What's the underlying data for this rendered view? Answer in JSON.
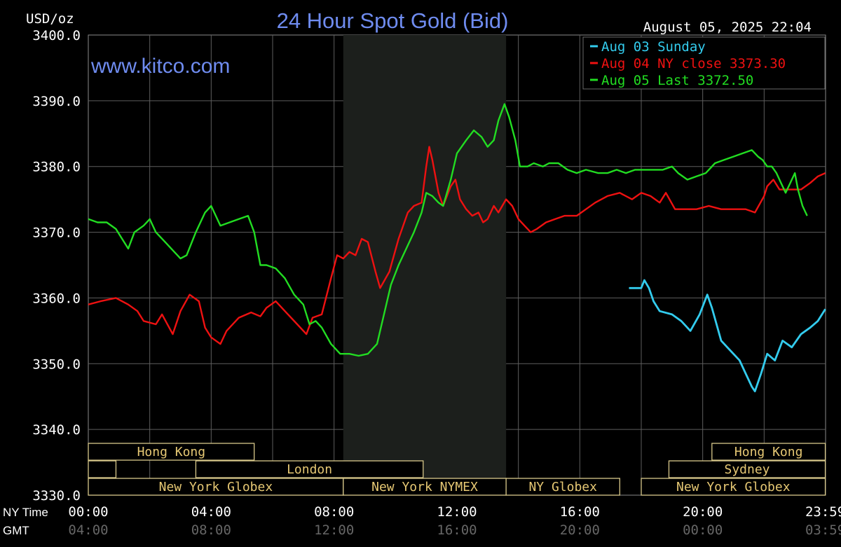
{
  "chart_data": {
    "type": "line",
    "title": "24 Hour Spot Gold (Bid)",
    "ylabel": "USD/oz",
    "watermark": "www.kitco.com",
    "timestamp": "August 05, 2025 22:04",
    "ylim": [
      3330,
      3400
    ],
    "xlim_hours": [
      0,
      24
    ],
    "y_ticks": [
      "3400.0",
      "3390.0",
      "3380.0",
      "3370.0",
      "3360.0",
      "3350.0",
      "3340.0",
      "3330.0"
    ],
    "x_axis_row_labels": [
      "NY Time",
      "GMT"
    ],
    "x_ticks_ny": [
      "00:00",
      "04:00",
      "08:00",
      "12:00",
      "16:00",
      "20:00",
      "23:59"
    ],
    "x_ticks_gmt": [
      "04:00",
      "08:00",
      "12:00",
      "16:00",
      "20:00",
      "00:00",
      "03:59"
    ],
    "grid": true,
    "legend_position": "top-right",
    "shaded_session_hours": [
      8.3,
      13.6
    ],
    "series": [
      {
        "name": "Aug 03 Sunday",
        "legend": "Aug 03 Sunday",
        "color": "#33ccee",
        "points": [
          [
            17.6,
            3361.5
          ],
          [
            18.0,
            3361.5
          ],
          [
            18.1,
            3362.7
          ],
          [
            18.25,
            3361.5
          ],
          [
            18.4,
            3359.5
          ],
          [
            18.6,
            3358.0
          ],
          [
            19.0,
            3357.5
          ],
          [
            19.3,
            3356.5
          ],
          [
            19.6,
            3355.0
          ],
          [
            19.9,
            3357.5
          ],
          [
            20.15,
            3360.5
          ],
          [
            20.3,
            3358.5
          ],
          [
            20.6,
            3353.5
          ],
          [
            20.9,
            3352.0
          ],
          [
            21.2,
            3350.5
          ],
          [
            21.4,
            3348.5
          ],
          [
            21.6,
            3346.5
          ],
          [
            21.7,
            3345.8
          ],
          [
            21.9,
            3348.5
          ],
          [
            22.1,
            3351.5
          ],
          [
            22.35,
            3350.5
          ],
          [
            22.6,
            3353.5
          ],
          [
            22.9,
            3352.5
          ],
          [
            23.2,
            3354.5
          ],
          [
            23.5,
            3355.5
          ],
          [
            23.75,
            3356.5
          ],
          [
            23.99,
            3358.3
          ]
        ]
      },
      {
        "name": "Aug 04 NY close",
        "legend": "Aug 04 NY close 3373.30",
        "color": "#ee1111",
        "points": [
          [
            0,
            3359
          ],
          [
            0.4,
            3359.5
          ],
          [
            0.9,
            3360
          ],
          [
            1.3,
            3359
          ],
          [
            1.6,
            3358
          ],
          [
            1.8,
            3356.5
          ],
          [
            2.2,
            3356
          ],
          [
            2.4,
            3357.5
          ],
          [
            2.75,
            3354.5
          ],
          [
            3.0,
            3358
          ],
          [
            3.3,
            3360.5
          ],
          [
            3.6,
            3359.5
          ],
          [
            3.8,
            3355.5
          ],
          [
            4.0,
            3354
          ],
          [
            4.3,
            3353
          ],
          [
            4.5,
            3355
          ],
          [
            4.9,
            3357
          ],
          [
            5.3,
            3357.8
          ],
          [
            5.6,
            3357.2
          ],
          [
            5.8,
            3358.5
          ],
          [
            6.1,
            3359.5
          ],
          [
            6.4,
            3358
          ],
          [
            6.8,
            3356
          ],
          [
            7.1,
            3354.5
          ],
          [
            7.3,
            3357
          ],
          [
            7.6,
            3357.5
          ],
          [
            7.9,
            3363
          ],
          [
            8.1,
            3366.5
          ],
          [
            8.3,
            3366
          ],
          [
            8.5,
            3367
          ],
          [
            8.7,
            3366.5
          ],
          [
            8.9,
            3369
          ],
          [
            9.1,
            3368.5
          ],
          [
            9.35,
            3364
          ],
          [
            9.5,
            3361.5
          ],
          [
            9.8,
            3364
          ],
          [
            10.1,
            3369
          ],
          [
            10.4,
            3373
          ],
          [
            10.6,
            3374
          ],
          [
            10.85,
            3374.5
          ],
          [
            11.0,
            3380
          ],
          [
            11.1,
            3383
          ],
          [
            11.2,
            3381
          ],
          [
            11.4,
            3376
          ],
          [
            11.55,
            3374
          ],
          [
            11.8,
            3377
          ],
          [
            11.95,
            3378
          ],
          [
            12.1,
            3375
          ],
          [
            12.3,
            3373.5
          ],
          [
            12.5,
            3372.5
          ],
          [
            12.7,
            3373
          ],
          [
            12.85,
            3371.5
          ],
          [
            13.0,
            3372
          ],
          [
            13.2,
            3374
          ],
          [
            13.35,
            3373
          ],
          [
            13.6,
            3375
          ],
          [
            13.8,
            3374
          ],
          [
            14.0,
            3372
          ],
          [
            14.2,
            3371
          ],
          [
            14.4,
            3370
          ],
          [
            14.6,
            3370.5
          ],
          [
            14.9,
            3371.5
          ],
          [
            15.2,
            3372
          ],
          [
            15.5,
            3372.5
          ],
          [
            15.9,
            3372.5
          ],
          [
            16.2,
            3373.5
          ],
          [
            16.5,
            3374.5
          ],
          [
            16.9,
            3375.5
          ],
          [
            17.3,
            3376
          ],
          [
            17.7,
            3375
          ],
          [
            18.0,
            3376
          ],
          [
            18.3,
            3375.5
          ],
          [
            18.6,
            3374.5
          ],
          [
            18.8,
            3376
          ],
          [
            19.1,
            3373.5
          ],
          [
            19.4,
            3373.5
          ],
          [
            19.8,
            3373.5
          ],
          [
            20.2,
            3374
          ],
          [
            20.6,
            3373.5
          ],
          [
            21.0,
            3373.5
          ],
          [
            21.4,
            3373.5
          ],
          [
            21.7,
            3373
          ],
          [
            22.0,
            3375.5
          ],
          [
            22.1,
            3377
          ],
          [
            22.3,
            3378
          ],
          [
            22.5,
            3376.5
          ],
          [
            22.8,
            3376.5
          ],
          [
            23.2,
            3376.5
          ],
          [
            23.5,
            3377.5
          ],
          [
            23.75,
            3378.5
          ],
          [
            23.99,
            3379
          ]
        ]
      },
      {
        "name": "Aug 05 Last",
        "legend": "Aug 05 Last 3372.50",
        "color": "#22dd22",
        "points": [
          [
            0,
            3372
          ],
          [
            0.3,
            3371.5
          ],
          [
            0.6,
            3371.5
          ],
          [
            0.9,
            3370.5
          ],
          [
            1.1,
            3369
          ],
          [
            1.3,
            3367.5
          ],
          [
            1.5,
            3370
          ],
          [
            1.8,
            3371
          ],
          [
            2.0,
            3372
          ],
          [
            2.2,
            3370
          ],
          [
            2.5,
            3368.5
          ],
          [
            2.8,
            3367
          ],
          [
            3.0,
            3366
          ],
          [
            3.2,
            3366.5
          ],
          [
            3.5,
            3370
          ],
          [
            3.8,
            3373
          ],
          [
            4.0,
            3374
          ],
          [
            4.3,
            3371
          ],
          [
            4.6,
            3371.5
          ],
          [
            4.9,
            3372
          ],
          [
            5.2,
            3372.5
          ],
          [
            5.4,
            3370
          ],
          [
            5.6,
            3365
          ],
          [
            5.8,
            3365
          ],
          [
            6.1,
            3364.5
          ],
          [
            6.4,
            3363
          ],
          [
            6.7,
            3360.5
          ],
          [
            7.0,
            3359
          ],
          [
            7.2,
            3356
          ],
          [
            7.4,
            3356.5
          ],
          [
            7.6,
            3355.5
          ],
          [
            7.9,
            3353
          ],
          [
            8.2,
            3351.5
          ],
          [
            8.5,
            3351.5
          ],
          [
            8.8,
            3351.2
          ],
          [
            9.1,
            3351.5
          ],
          [
            9.4,
            3353
          ],
          [
            9.6,
            3357
          ],
          [
            9.85,
            3362
          ],
          [
            10.1,
            3365
          ],
          [
            10.4,
            3368
          ],
          [
            10.6,
            3370
          ],
          [
            10.85,
            3373
          ],
          [
            11.0,
            3376
          ],
          [
            11.2,
            3375.5
          ],
          [
            11.4,
            3374.5
          ],
          [
            11.55,
            3374
          ],
          [
            11.8,
            3378
          ],
          [
            12.0,
            3382
          ],
          [
            12.3,
            3384
          ],
          [
            12.55,
            3385.5
          ],
          [
            12.8,
            3384.5
          ],
          [
            13.0,
            3383
          ],
          [
            13.2,
            3384
          ],
          [
            13.35,
            3387
          ],
          [
            13.55,
            3389.5
          ],
          [
            13.7,
            3387.5
          ],
          [
            13.9,
            3384
          ],
          [
            14.05,
            3380
          ],
          [
            14.3,
            3380
          ],
          [
            14.5,
            3380.5
          ],
          [
            14.8,
            3380
          ],
          [
            15.0,
            3380.5
          ],
          [
            15.3,
            3380.5
          ],
          [
            15.6,
            3379.5
          ],
          [
            15.9,
            3379
          ],
          [
            16.2,
            3379.5
          ],
          [
            16.6,
            3379
          ],
          [
            16.9,
            3379
          ],
          [
            17.2,
            3379.5
          ],
          [
            17.5,
            3379
          ],
          [
            17.8,
            3379.5
          ],
          [
            18.1,
            3379.5
          ],
          [
            18.4,
            3379.5
          ],
          [
            18.7,
            3379.5
          ],
          [
            19.0,
            3380
          ],
          [
            19.2,
            3379
          ],
          [
            19.5,
            3378
          ],
          [
            19.8,
            3378.5
          ],
          [
            20.1,
            3379
          ],
          [
            20.4,
            3380.5
          ],
          [
            20.7,
            3381
          ],
          [
            21.0,
            3381.5
          ],
          [
            21.3,
            3382
          ],
          [
            21.6,
            3382.5
          ],
          [
            21.8,
            3381.5
          ],
          [
            21.95,
            3381
          ],
          [
            22.1,
            3380
          ],
          [
            22.25,
            3380
          ],
          [
            22.4,
            3379
          ],
          [
            22.55,
            3377.5
          ],
          [
            22.7,
            3376
          ],
          [
            22.85,
            3377.5
          ],
          [
            23.0,
            3379
          ],
          [
            23.1,
            3376.5
          ],
          [
            23.25,
            3374
          ],
          [
            23.4,
            3372.5
          ]
        ]
      }
    ],
    "session_bars": [
      {
        "label": "Hong Kong",
        "row": 0,
        "start": 0,
        "end": 5.4
      },
      {
        "label": "Hong Kong",
        "row": 0,
        "start": 20.3,
        "end": 23.99
      },
      {
        "label": "",
        "row": 1,
        "start": 0,
        "end": 0.9
      },
      {
        "label": "London",
        "row": 1,
        "start": 3.5,
        "end": 10.9
      },
      {
        "label": "Sydney",
        "row": 1,
        "start": 18.9,
        "end": 23.99
      },
      {
        "label": "New York Globex",
        "row": 2,
        "start": 0,
        "end": 8.3
      },
      {
        "label": "New York NYMEX",
        "row": 2,
        "start": 8.3,
        "end": 13.6
      },
      {
        "label": "NY Globex",
        "row": 2,
        "start": 13.6,
        "end": 17.3
      },
      {
        "label": "New York Globex",
        "row": 2,
        "start": 18.0,
        "end": 23.99
      }
    ]
  }
}
